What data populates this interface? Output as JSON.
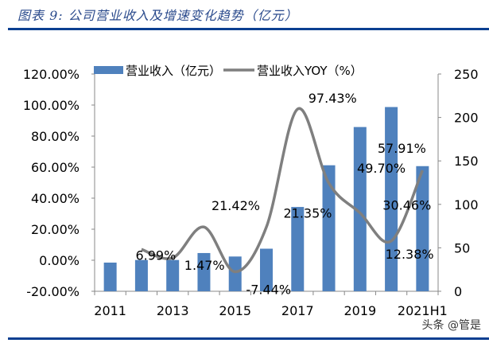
{
  "title": "图表 9: 公司营业收入及增速变化趋势（亿元）",
  "watermark": "头条 @管是",
  "chart_data": {
    "type": "bar+line",
    "categories": [
      "2011",
      "2012",
      "2013",
      "2014",
      "2015",
      "2016",
      "2017",
      "2018",
      "2019",
      "2020",
      "2021H1"
    ],
    "x_tick_labels": [
      "2011",
      "2013",
      "2015",
      "2017",
      "2019",
      "2021H1"
    ],
    "series": [
      {
        "name": "营业收入（亿元）",
        "type": "bar",
        "axis": "right",
        "color": "#4f81bd",
        "values": [
          33,
          36,
          36,
          44,
          40,
          49,
          97,
          145,
          189,
          212,
          144
        ]
      },
      {
        "name": "营业收入YOY（%）",
        "type": "line",
        "axis": "left",
        "color": "#7f7f7f",
        "values": [
          null,
          6.99,
          1.47,
          21.42,
          -7.44,
          21.35,
          97.43,
          49.7,
          30.46,
          12.38,
          57.91
        ],
        "labels": [
          null,
          "6.99%",
          "1.47%",
          "21.42%",
          "-7.44%",
          "21.35%",
          "97.43%",
          "49.70%",
          "30.46%",
          "12.38%",
          "57.91%"
        ]
      }
    ],
    "y_left": {
      "range": [
        -20,
        120
      ],
      "ticks": [
        "-20.00%",
        "0.00%",
        "20.00%",
        "40.00%",
        "60.00%",
        "80.00%",
        "100.00%",
        "120.00%"
      ]
    },
    "y_right": {
      "range": [
        0,
        250
      ],
      "ticks": [
        "0",
        "50",
        "100",
        "150",
        "200",
        "250"
      ]
    },
    "legend": "top",
    "grid": false
  }
}
